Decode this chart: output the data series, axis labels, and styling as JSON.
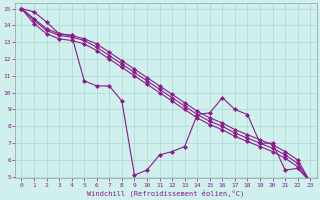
{
  "xlabel": "Windchill (Refroidissement éolien,°C)",
  "background_color": "#cff0ec",
  "grid_color": "#aad8d2",
  "line_color": "#8b1a8b",
  "marker_color": "#8b1a8b",
  "x_data": [
    0,
    1,
    2,
    3,
    4,
    5,
    6,
    7,
    8,
    9,
    10,
    11,
    12,
    13,
    14,
    15,
    16,
    17,
    18,
    19,
    20,
    21,
    22,
    23
  ],
  "y_main": [
    15.0,
    14.8,
    14.2,
    13.5,
    13.4,
    10.7,
    10.4,
    10.4,
    9.5,
    5.1,
    5.4,
    6.3,
    6.5,
    6.8,
    8.7,
    8.8,
    9.7,
    9.0,
    8.7,
    7.0,
    7.0,
    5.4,
    5.5,
    4.7
  ],
  "y_line2": [
    15.0,
    14.4,
    13.8,
    13.5,
    13.4,
    13.2,
    12.9,
    12.4,
    11.9,
    11.4,
    10.9,
    10.4,
    9.9,
    9.4,
    8.9,
    8.5,
    8.2,
    7.8,
    7.5,
    7.2,
    6.9,
    6.5,
    6.0,
    4.7
  ],
  "y_line3": [
    15.0,
    14.3,
    13.7,
    13.4,
    13.3,
    13.1,
    12.7,
    12.2,
    11.7,
    11.2,
    10.7,
    10.2,
    9.7,
    9.2,
    8.7,
    8.3,
    8.0,
    7.6,
    7.3,
    7.0,
    6.7,
    6.3,
    5.8,
    4.7
  ],
  "y_line4": [
    15.0,
    14.1,
    13.5,
    13.2,
    13.1,
    12.9,
    12.5,
    12.0,
    11.5,
    11.0,
    10.5,
    10.0,
    9.5,
    9.0,
    8.5,
    8.1,
    7.8,
    7.4,
    7.1,
    6.8,
    6.5,
    6.1,
    5.6,
    4.7
  ],
  "ylim": [
    5,
    15
  ],
  "xlim": [
    -0.5,
    23.5
  ],
  "yticks": [
    5,
    6,
    7,
    8,
    9,
    10,
    11,
    12,
    13,
    14,
    15
  ],
  "xticks": [
    0,
    1,
    2,
    3,
    4,
    5,
    6,
    7,
    8,
    9,
    10,
    11,
    12,
    13,
    14,
    15,
    16,
    17,
    18,
    19,
    20,
    21,
    22,
    23
  ]
}
